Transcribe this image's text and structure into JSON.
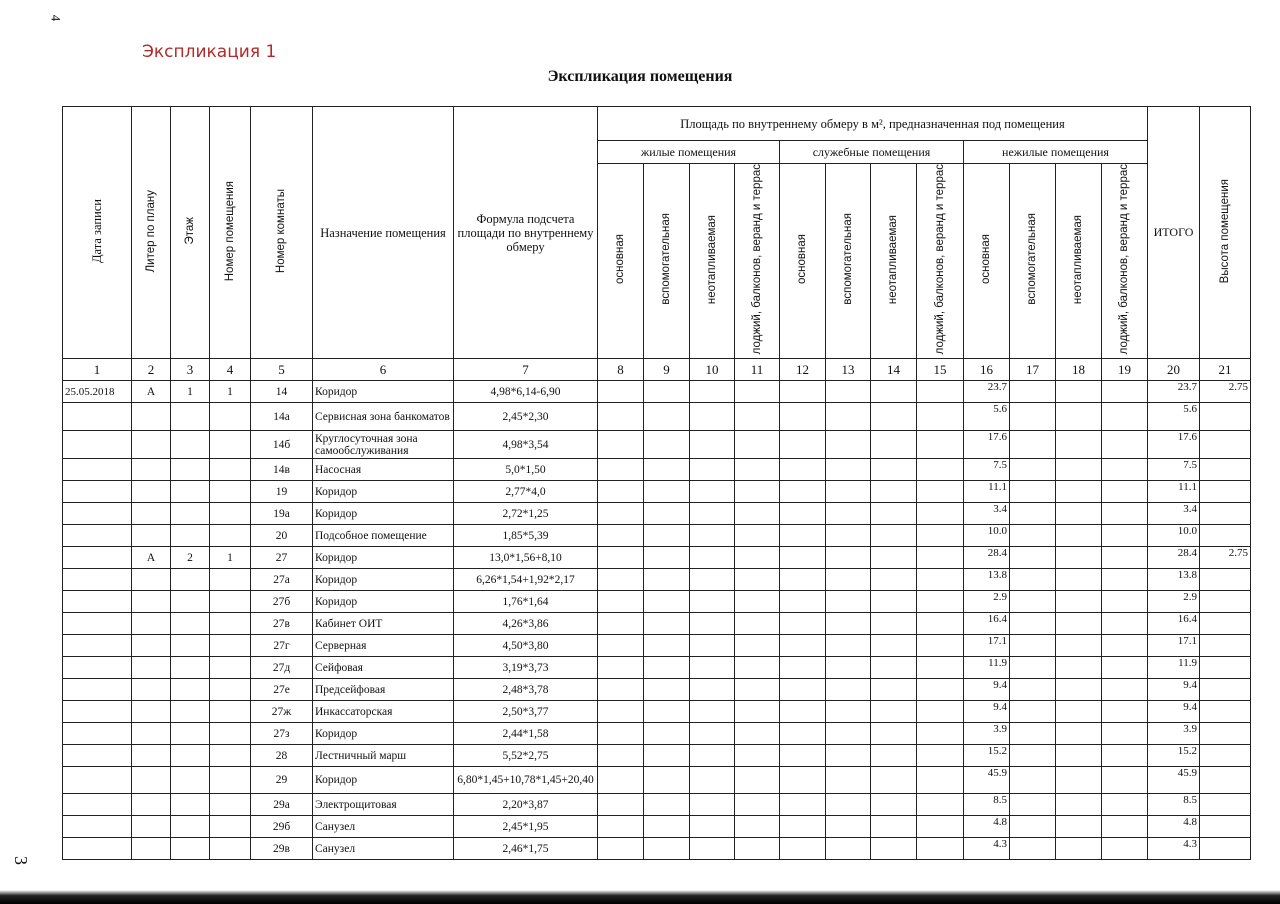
{
  "page_number_top": "4",
  "page_mark_bottom": "3",
  "annotation": "Экспликация 1",
  "title": "Экспликация помещения",
  "headers": {
    "date": "Дата записи",
    "liter": "Литер по плану",
    "floor": "Этаж",
    "premise_no": "Номер помещения",
    "room_no": "Номер комнаты",
    "purpose": "Назначение помещения",
    "formula": "Формула подсчета площади по внутреннему обмеру",
    "area_group": "Площадь по внутреннему обмеру в м², предназначенная под помещения",
    "residential": "жилые помещения",
    "service": "служебные помещения",
    "nonresidential": "нежилые помещения",
    "sub": [
      "основная",
      "вспомогательная",
      "неотапливаемая",
      "лоджий, балконов, веранд и террас"
    ],
    "total": "ИТОГО",
    "height": "Высота помещения",
    "col_numbers": [
      "1",
      "2",
      "3",
      "4",
      "5",
      "6",
      "7",
      "8",
      "9",
      "10",
      "11",
      "12",
      "13",
      "14",
      "15",
      "16",
      "17",
      "18",
      "19",
      "20",
      "21"
    ]
  },
  "rows": [
    {
      "date": "25.05.2018",
      "liter": "А",
      "floor": "1",
      "premise": "1",
      "room": "14",
      "name": "Коридор",
      "formula": "4,98*6,14-6,90",
      "c16": "23.7",
      "total": "23.7",
      "height": "2.75"
    },
    {
      "date": "",
      "liter": "",
      "floor": "",
      "premise": "",
      "room": "14а",
      "name": "Сервисная зона банкоматов",
      "formula": "2,45*2,30",
      "c16": "5.6",
      "total": "5.6",
      "height": ""
    },
    {
      "date": "",
      "liter": "",
      "floor": "",
      "premise": "",
      "room": "14б",
      "name": "Круглосуточная зона самообслуживания",
      "formula": "4,98*3,54",
      "c16": "17.6",
      "total": "17.6",
      "height": ""
    },
    {
      "date": "",
      "liter": "",
      "floor": "",
      "premise": "",
      "room": "14в",
      "name": "Насосная",
      "formula": "5,0*1,50",
      "c16": "7.5",
      "total": "7.5",
      "height": ""
    },
    {
      "date": "",
      "liter": "",
      "floor": "",
      "premise": "",
      "room": "19",
      "name": "Коридор",
      "formula": "2,77*4,0",
      "c16": "11.1",
      "total": "11.1",
      "height": ""
    },
    {
      "date": "",
      "liter": "",
      "floor": "",
      "premise": "",
      "room": "19а",
      "name": "Коридор",
      "formula": "2,72*1,25",
      "c16": "3.4",
      "total": "3.4",
      "height": ""
    },
    {
      "date": "",
      "liter": "",
      "floor": "",
      "premise": "",
      "room": "20",
      "name": "Подсобное помещение",
      "formula": "1,85*5,39",
      "c16": "10.0",
      "total": "10.0",
      "height": ""
    },
    {
      "date": "",
      "liter": "А",
      "floor": "2",
      "premise": "1",
      "room": "27",
      "name": "Коридор",
      "formula": "13,0*1,56+8,10",
      "c16": "28.4",
      "total": "28.4",
      "height": "2.75"
    },
    {
      "date": "",
      "liter": "",
      "floor": "",
      "premise": "",
      "room": "27а",
      "name": "Коридор",
      "formula": "6,26*1,54+1,92*2,17",
      "c16": "13.8",
      "total": "13.8",
      "height": ""
    },
    {
      "date": "",
      "liter": "",
      "floor": "",
      "premise": "",
      "room": "27б",
      "name": "Коридор",
      "formula": "1,76*1,64",
      "c16": "2.9",
      "total": "2.9",
      "height": ""
    },
    {
      "date": "",
      "liter": "",
      "floor": "",
      "premise": "",
      "room": "27в",
      "name": "Кабинет ОИТ",
      "formula": "4,26*3,86",
      "c16": "16.4",
      "total": "16.4",
      "height": ""
    },
    {
      "date": "",
      "liter": "",
      "floor": "",
      "premise": "",
      "room": "27г",
      "name": "Серверная",
      "formula": "4,50*3,80",
      "c16": "17.1",
      "total": "17.1",
      "height": ""
    },
    {
      "date": "",
      "liter": "",
      "floor": "",
      "premise": "",
      "room": "27д",
      "name": "Сейфовая",
      "formula": "3,19*3,73",
      "c16": "11.9",
      "total": "11.9",
      "height": ""
    },
    {
      "date": "",
      "liter": "",
      "floor": "",
      "premise": "",
      "room": "27е",
      "name": "Предсейфовая",
      "formula": "2,48*3,78",
      "c16": "9.4",
      "total": "9.4",
      "height": ""
    },
    {
      "date": "",
      "liter": "",
      "floor": "",
      "premise": "",
      "room": "27ж",
      "name": "Инкассаторская",
      "formula": "2,50*3,77",
      "c16": "9.4",
      "total": "9.4",
      "height": ""
    },
    {
      "date": "",
      "liter": "",
      "floor": "",
      "premise": "",
      "room": "27з",
      "name": "Коридор",
      "formula": "2,44*1,58",
      "c16": "3.9",
      "total": "3.9",
      "height": ""
    },
    {
      "date": "",
      "liter": "",
      "floor": "",
      "premise": "",
      "room": "28",
      "name": "Лестничный марш",
      "formula": "5,52*2,75",
      "c16": "15.2",
      "total": "15.2",
      "height": ""
    },
    {
      "date": "",
      "liter": "",
      "floor": "",
      "premise": "",
      "room": "29",
      "name": "Коридор",
      "formula": "6,80*1,45+10,78*1,45+20,40",
      "c16": "45.9",
      "total": "45.9",
      "height": ""
    },
    {
      "date": "",
      "liter": "",
      "floor": "",
      "premise": "",
      "room": "29а",
      "name": "Электрощитовая",
      "formula": "2,20*3,87",
      "c16": "8.5",
      "total": "8.5",
      "height": ""
    },
    {
      "date": "",
      "liter": "",
      "floor": "",
      "premise": "",
      "room": "29б",
      "name": "Санузел",
      "formula": "2,45*1,95",
      "c16": "4.8",
      "total": "4.8",
      "height": ""
    },
    {
      "date": "",
      "liter": "",
      "floor": "",
      "premise": "",
      "room": "29в",
      "name": "Санузел",
      "formula": "2,46*1,75",
      "c16": "4.3",
      "total": "4.3",
      "height": ""
    }
  ]
}
